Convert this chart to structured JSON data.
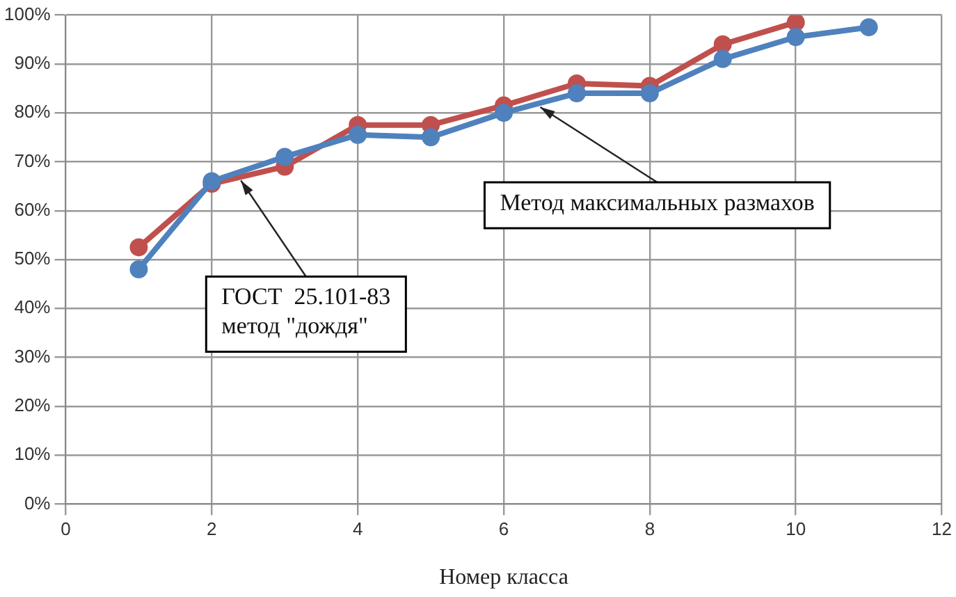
{
  "chart_data": {
    "type": "line",
    "xlabel": "Номер класса",
    "series": [
      {
        "color": "#4f81bd",
        "x": [
          1,
          2,
          3,
          4,
          5,
          6,
          7,
          8,
          9,
          10,
          11
        ],
        "values": [
          48,
          66,
          71,
          75.5,
          75,
          80,
          84,
          84,
          91,
          95.5,
          97.5
        ]
      },
      {
        "color": "#c0504d",
        "x": [
          1,
          2,
          3,
          4,
          5,
          6,
          7,
          8,
          9,
          10
        ],
        "values": [
          52.5,
          65.5,
          69,
          77.5,
          77.5,
          81.5,
          86,
          85.5,
          94,
          98.5
        ]
      }
    ],
    "xlim": [
      0,
      12
    ],
    "xticks": [
      0,
      2,
      4,
      6,
      8,
      10,
      12
    ],
    "ylim": [
      0,
      100
    ],
    "yticks": [
      {
        "value": 0,
        "label": "0%"
      },
      {
        "value": 10,
        "label": "10%"
      },
      {
        "value": 20,
        "label": "20%"
      },
      {
        "value": 30,
        "label": "30%"
      },
      {
        "value": 40,
        "label": "40%"
      },
      {
        "value": 50,
        "label": "50%"
      },
      {
        "value": 60,
        "label": "60%"
      },
      {
        "value": 70,
        "label": "70%"
      },
      {
        "value": 80,
        "label": "80%"
      },
      {
        "value": 90,
        "label": "90%"
      },
      {
        "value": 100,
        "label": "100%"
      }
    ],
    "grid": true,
    "legend": false,
    "marker": "circle",
    "line_style": "solid",
    "annotations": [
      {
        "text": "ГОСТ  25.101-83\nметод \"дождя\"",
        "x": 2.4,
        "y": 67
      },
      {
        "text": "Метод максимальных размахов",
        "x": 6.5,
        "y": 82
      }
    ]
  }
}
